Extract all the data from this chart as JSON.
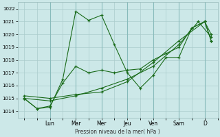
{
  "background_color": "#cce8e8",
  "grid_color": "#aacccc",
  "line_color": "#1a6b1a",
  "marker_color": "#1a6b1a",
  "xlabel": "Pression niveau de la mer( hPa )",
  "ylim": [
    1013.5,
    1022.5
  ],
  "yticks": [
    1014,
    1015,
    1016,
    1017,
    1018,
    1019,
    1020,
    1021,
    1022
  ],
  "day_labels": [
    "Lun",
    "Mar",
    "Mer",
    "Jeu",
    "Ven",
    "Sam",
    "D"
  ],
  "day_x_positions": [
    2,
    4,
    6,
    8,
    10,
    12,
    14
  ],
  "xlim": [
    -0.5,
    15
  ],
  "series": [
    [
      [
        0.0,
        1015.0
      ],
      [
        1.0,
        1014.2
      ],
      [
        2.0,
        1014.3
      ],
      [
        3.0,
        1016.5
      ],
      [
        4.0,
        1021.8
      ],
      [
        5.0,
        1021.1
      ],
      [
        6.0,
        1021.5
      ],
      [
        7.0,
        1019.2
      ],
      [
        8.0,
        1017.0
      ],
      [
        9.0,
        1015.8
      ],
      [
        10.0,
        1016.8
      ],
      [
        11.0,
        1018.2
      ],
      [
        12.0,
        1018.2
      ],
      [
        13.0,
        1020.5
      ],
      [
        14.0,
        1021.0
      ],
      [
        14.5,
        1019.5
      ]
    ],
    [
      [
        0.0,
        1015.0
      ],
      [
        1.0,
        1014.2
      ],
      [
        2.0,
        1014.4
      ],
      [
        3.0,
        1016.2
      ],
      [
        4.0,
        1017.5
      ],
      [
        5.0,
        1017.0
      ],
      [
        6.0,
        1017.2
      ],
      [
        7.0,
        1017.0
      ],
      [
        8.0,
        1017.2
      ],
      [
        9.0,
        1017.3
      ],
      [
        10.0,
        1018.0
      ],
      [
        11.0,
        1018.5
      ],
      [
        12.0,
        1019.0
      ],
      [
        13.0,
        1020.5
      ],
      [
        14.0,
        1021.0
      ],
      [
        14.5,
        1019.5
      ]
    ],
    [
      [
        0.0,
        1015.0
      ],
      [
        2.0,
        1014.8
      ],
      [
        4.0,
        1015.2
      ],
      [
        6.0,
        1015.8
      ],
      [
        8.0,
        1016.5
      ],
      [
        10.0,
        1017.5
      ],
      [
        12.0,
        1019.2
      ],
      [
        13.5,
        1021.0
      ],
      [
        14.5,
        1019.8
      ]
    ],
    [
      [
        0.0,
        1015.2
      ],
      [
        2.0,
        1015.0
      ],
      [
        4.0,
        1015.3
      ],
      [
        6.0,
        1015.5
      ],
      [
        8.0,
        1016.3
      ],
      [
        10.0,
        1017.8
      ],
      [
        12.0,
        1019.5
      ],
      [
        14.0,
        1021.0
      ],
      [
        14.5,
        1020.0
      ]
    ]
  ]
}
